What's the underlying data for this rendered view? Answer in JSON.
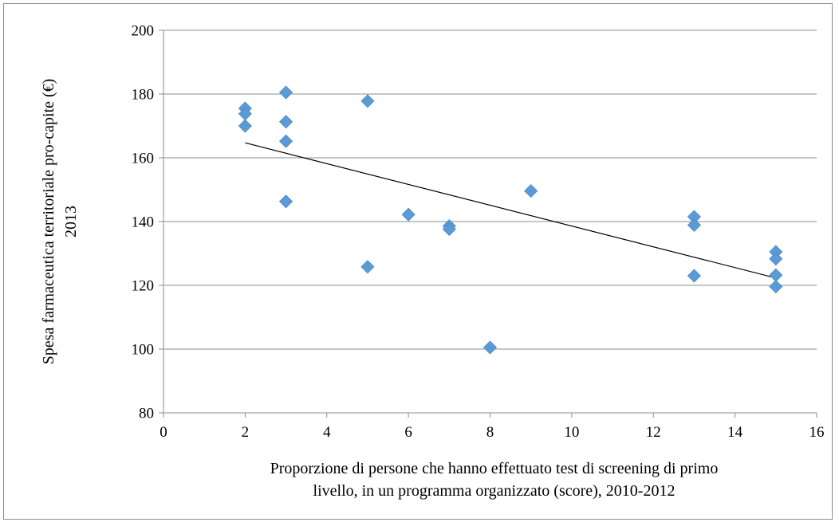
{
  "chart_data": {
    "type": "scatter",
    "title": "",
    "xlabel_lines": [
      "Proporzione di persone che hanno effettuato test di screening di primo",
      "livello, in un programma organizzato (score), 2010-2012"
    ],
    "ylabel_lines": [
      "Spesa farmaceutica territoriale pro-capite (€)",
      "2013"
    ],
    "xlim": [
      0,
      16
    ],
    "ylim": [
      80,
      200
    ],
    "x_ticks": [
      0,
      2,
      4,
      6,
      8,
      10,
      12,
      14,
      16
    ],
    "y_ticks": [
      80,
      100,
      120,
      140,
      160,
      180,
      200
    ],
    "grid": "horizontal",
    "marker": "diamond",
    "marker_color": "#5b9bd5",
    "trendline": {
      "type": "linear",
      "x": [
        2,
        15
      ],
      "y": [
        164.7,
        122.3
      ],
      "color": "#000000"
    },
    "points": [
      {
        "x": 2,
        "y": 175.5
      },
      {
        "x": 2,
        "y": 173.8
      },
      {
        "x": 2,
        "y": 170.0
      },
      {
        "x": 3,
        "y": 180.5
      },
      {
        "x": 3,
        "y": 171.3
      },
      {
        "x": 3,
        "y": 165.2
      },
      {
        "x": 3,
        "y": 146.3
      },
      {
        "x": 5,
        "y": 177.8
      },
      {
        "x": 5,
        "y": 125.8
      },
      {
        "x": 6,
        "y": 142.2
      },
      {
        "x": 7,
        "y": 138.6
      },
      {
        "x": 7,
        "y": 137.6
      },
      {
        "x": 8,
        "y": 100.5
      },
      {
        "x": 9,
        "y": 149.6
      },
      {
        "x": 13,
        "y": 141.5
      },
      {
        "x": 13,
        "y": 138.9
      },
      {
        "x": 13,
        "y": 123.0
      },
      {
        "x": 15,
        "y": 130.5
      },
      {
        "x": 15,
        "y": 128.3
      },
      {
        "x": 15,
        "y": 123.2
      },
      {
        "x": 15,
        "y": 119.6
      }
    ]
  }
}
